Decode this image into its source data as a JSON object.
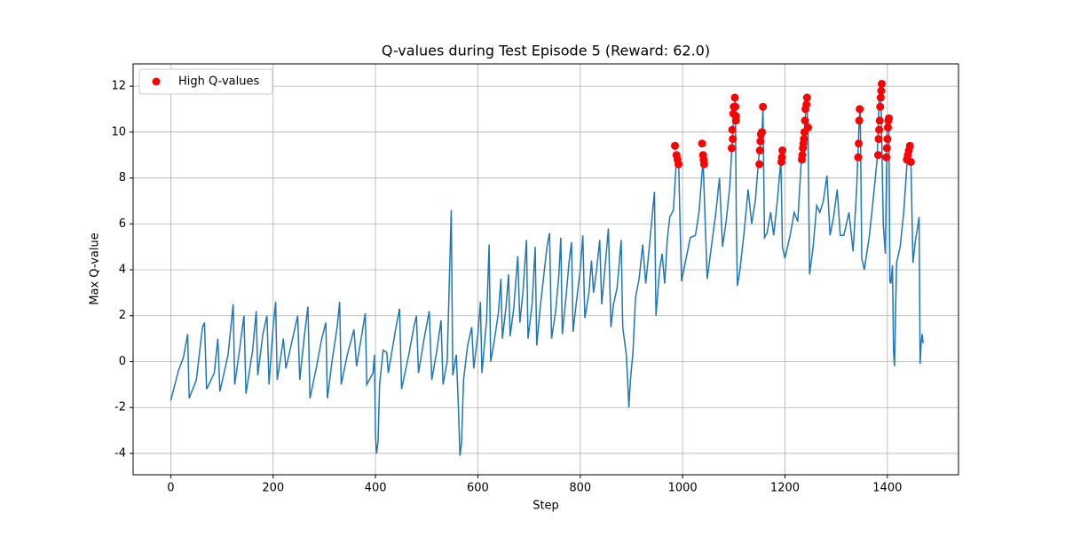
{
  "chart_data": {
    "type": "line",
    "title": "Q-values during Test Episode 5 (Reward: 62.0)",
    "xlabel": "Step",
    "ylabel": "Max Q-value",
    "xlim": [
      -73.5,
      1539
    ],
    "ylim": [
      -4.93,
      12.97
    ],
    "xticks": [
      0,
      200,
      400,
      600,
      800,
      1000,
      1200,
      1400
    ],
    "yticks": [
      -4,
      -2,
      0,
      2,
      4,
      6,
      8,
      10,
      12
    ],
    "grid": true,
    "legend": "upper left",
    "series": [
      {
        "kind": "line",
        "color": "#1f77b4",
        "x": [
          0,
          15,
          25,
          33,
          36,
          50,
          62,
          66,
          70,
          85,
          92,
          96,
          112,
          122,
          125,
          135,
          143,
          147,
          160,
          167,
          170,
          180,
          188,
          192,
          200,
          205,
          208,
          215,
          220,
          225,
          240,
          248,
          252,
          262,
          268,
          272,
          285,
          295,
          303,
          306,
          315,
          325,
          330,
          333,
          345,
          358,
          363,
          372,
          380,
          383,
          395,
          398,
          400,
          402,
          405,
          408,
          415,
          422,
          425,
          440,
          447,
          451,
          465,
          475,
          480,
          484,
          495,
          505,
          510,
          520,
          528,
          532,
          540,
          548,
          551,
          558,
          562,
          565,
          568,
          572,
          580,
          588,
          592,
          600,
          605,
          608,
          617,
          622,
          625,
          632,
          640,
          645,
          648,
          655,
          660,
          663,
          670,
          678,
          682,
          688,
          695,
          698,
          706,
          712,
          715,
          722,
          735,
          740,
          744,
          752,
          758,
          762,
          765,
          773,
          778,
          783,
          786,
          792,
          800,
          805,
          809,
          817,
          822,
          826,
          832,
          838,
          842,
          848,
          855,
          860,
          865,
          872,
          880,
          883,
          890,
          893,
          895,
          898,
          903,
          908,
          915,
          922,
          928,
          935,
          945,
          948,
          955,
          960,
          965,
          970,
          975,
          982,
          988,
          992,
          995,
          998,
          1005,
          1015,
          1025,
          1032,
          1040,
          1043,
          1048,
          1055,
          1065,
          1072,
          1078,
          1085,
          1092,
          1098,
          1100,
          1103,
          1105,
          1107,
          1112,
          1120,
          1128,
          1135,
          1142,
          1150,
          1155,
          1157,
          1160,
          1165,
          1172,
          1178,
          1185,
          1192,
          1195,
          1200,
          1210,
          1218,
          1225,
          1232,
          1238,
          1242,
          1245,
          1248,
          1255,
          1262,
          1268,
          1275,
          1282,
          1288,
          1295,
          1302,
          1308,
          1315,
          1325,
          1333,
          1340,
          1345,
          1347,
          1350,
          1355,
          1365,
          1372,
          1380,
          1385,
          1388,
          1392,
          1396,
          1400,
          1403,
          1405,
          1407,
          1410,
          1412,
          1414,
          1418,
          1425,
          1432,
          1438,
          1442,
          1446,
          1450,
          1455,
          1460,
          1462,
          1464,
          1466,
          1468,
          1470
        ],
        "values": [
          -1.7,
          -0.4,
          0.2,
          1.2,
          -1.6,
          -0.8,
          1.5,
          1.7,
          -1.2,
          -0.5,
          1.0,
          -1.3,
          0.3,
          2.5,
          -1.0,
          0.6,
          2.0,
          -1.4,
          0.5,
          2.2,
          -0.6,
          1.2,
          2.0,
          -1.0,
          1.5,
          2.6,
          -0.8,
          0.2,
          1.0,
          -0.3,
          1.2,
          2.0,
          -0.8,
          1.3,
          2.4,
          -1.6,
          -0.2,
          1.0,
          1.7,
          -1.6,
          0.0,
          1.5,
          2.6,
          -1.0,
          0.3,
          1.4,
          -0.2,
          1.0,
          2.1,
          -1.0,
          -0.5,
          0.3,
          -3.2,
          -4.0,
          -3.5,
          -1.0,
          0.5,
          0.4,
          -0.5,
          1.5,
          2.3,
          -1.2,
          0.3,
          1.5,
          2.0,
          -0.5,
          1.0,
          2.2,
          -0.8,
          0.5,
          1.8,
          -1.0,
          0.0,
          6.6,
          -0.6,
          0.3,
          -2.0,
          -4.1,
          -3.6,
          -0.8,
          0.7,
          1.5,
          -0.3,
          1.2,
          2.6,
          -0.5,
          1.8,
          5.1,
          0.0,
          0.9,
          2.1,
          3.6,
          1.0,
          2.4,
          3.8,
          1.1,
          2.3,
          4.6,
          1.7,
          3.0,
          5.3,
          1.0,
          2.5,
          5.0,
          0.7,
          2.4,
          5.0,
          5.6,
          1.0,
          2.2,
          3.7,
          5.4,
          1.2,
          3.0,
          4.3,
          5.2,
          1.3,
          2.5,
          4.0,
          5.5,
          1.9,
          3.0,
          4.4,
          3.0,
          4.0,
          5.3,
          2.5,
          4.0,
          5.8,
          1.5,
          2.5,
          3.2,
          5.3,
          1.5,
          0.3,
          -1.0,
          -2.0,
          -0.8,
          0.4,
          2.8,
          3.6,
          5.1,
          3.4,
          5.0,
          7.4,
          2.0,
          4.0,
          4.7,
          3.4,
          5.3,
          6.3,
          6.6,
          8.8,
          9.0,
          6.0,
          3.5,
          4.3,
          5.4,
          5.5,
          6.5,
          8.8,
          6.8,
          3.6,
          4.8,
          6.5,
          8.0,
          5.0,
          6.1,
          7.6,
          10.0,
          11.0,
          11.5,
          6.0,
          3.3,
          4.0,
          5.6,
          7.5,
          6.0,
          7.0,
          9.2,
          9.8,
          11.1,
          5.4,
          5.6,
          6.5,
          5.5,
          7.0,
          8.8,
          5.0,
          4.5,
          5.5,
          6.5,
          6.1,
          8.8,
          10.0,
          11.5,
          10.2,
          3.8,
          5.0,
          6.8,
          6.5,
          7.0,
          8.1,
          5.5,
          6.3,
          7.5,
          5.5,
          5.5,
          6.5,
          4.8,
          7.5,
          10.5,
          11.0,
          4.5,
          4.0,
          5.5,
          7.0,
          8.8,
          12.1,
          11.0,
          6.0,
          4.7,
          10.6,
          10.3,
          3.5,
          3.4,
          4.2,
          0.5,
          -0.2,
          4.3,
          5.0,
          6.5,
          8.5,
          9.2,
          8.8,
          4.3,
          5.3,
          6.0,
          6.3,
          -0.1,
          0.8,
          1.2,
          0.8
        ]
      },
      {
        "kind": "scatter",
        "name": "High Q-values",
        "color": "#ff0000",
        "x": [
          985,
          988,
          990,
          992,
          1038,
          1040,
          1041,
          1042,
          1096,
          1097,
          1098,
          1099,
          1100,
          1102,
          1103,
          1104,
          1104,
          1150,
          1151,
          1152,
          1153,
          1155,
          1157,
          1193,
          1194,
          1195,
          1233,
          1234,
          1235,
          1236,
          1237,
          1238,
          1239,
          1240,
          1242,
          1243,
          1245,
          1343,
          1344,
          1345,
          1346,
          1382,
          1383,
          1384,
          1385,
          1386,
          1387,
          1388,
          1389,
          1398,
          1399,
          1400,
          1401,
          1402,
          1403,
          1438,
          1440,
          1442,
          1444,
          1446
        ],
        "values": [
          9.4,
          9.0,
          8.8,
          8.6,
          9.5,
          9.0,
          8.8,
          8.6,
          9.3,
          10.1,
          9.7,
          10.8,
          11.1,
          11.5,
          11.1,
          10.7,
          10.5,
          8.6,
          9.2,
          9.6,
          9.9,
          10.0,
          11.1,
          8.7,
          8.9,
          9.2,
          8.8,
          9.0,
          9.3,
          9.5,
          9.7,
          10.0,
          10.5,
          11.0,
          11.2,
          11.5,
          10.2,
          8.9,
          9.5,
          10.5,
          11.0,
          9.0,
          9.7,
          10.1,
          10.5,
          11.1,
          11.5,
          11.8,
          12.1,
          8.9,
          9.3,
          9.7,
          10.2,
          10.5,
          10.6,
          8.8,
          9.0,
          9.2,
          9.4,
          8.7
        ]
      }
    ]
  }
}
